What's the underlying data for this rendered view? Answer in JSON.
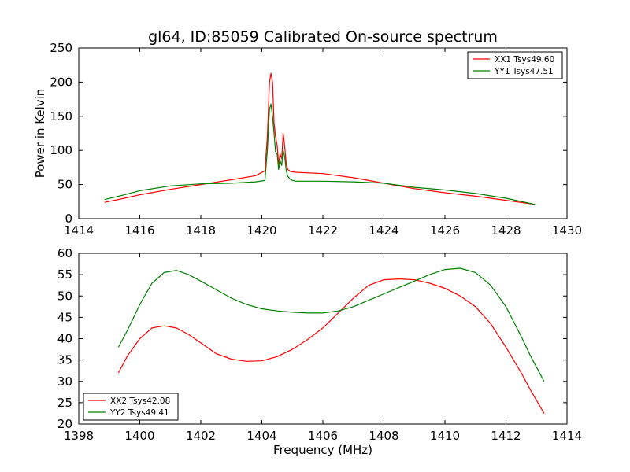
{
  "figure": {
    "title": "gl64, ID:85059 Calibrated On-source spectrum"
  },
  "chart_data": [
    {
      "type": "line",
      "title": "gl64, ID:85059 Calibrated On-source spectrum",
      "xlabel": "",
      "ylabel": "Power in Kelvin",
      "xlim": [
        1414,
        1430
      ],
      "ylim": [
        0,
        250
      ],
      "xticks": [
        1414,
        1416,
        1418,
        1420,
        1422,
        1424,
        1426,
        1428,
        1430
      ],
      "yticks": [
        0,
        50,
        100,
        150,
        200,
        250
      ],
      "legend_position": "upper-right",
      "grid": false,
      "series": [
        {
          "name": "XX1 Tsys49.60",
          "color": "#ff0000",
          "x": [
            1414.85,
            1415.5,
            1416,
            1417,
            1418,
            1419,
            1419.8,
            1420.1,
            1420.18,
            1420.25,
            1420.3,
            1420.35,
            1420.4,
            1420.45,
            1420.5,
            1420.55,
            1420.6,
            1420.65,
            1420.7,
            1420.75,
            1420.8,
            1420.85,
            1420.95,
            1421.1,
            1422,
            1423,
            1424,
            1425,
            1426,
            1427,
            1428,
            1428.95
          ],
          "y": [
            24,
            30,
            35,
            43,
            50,
            57,
            63,
            70,
            120,
            200,
            213,
            200,
            140,
            120,
            108,
            80,
            95,
            88,
            125,
            105,
            80,
            72,
            69,
            68,
            66,
            60,
            52,
            44,
            38,
            33,
            27,
            21
          ]
        },
        {
          "name": "YY1 Tsys47.51",
          "color": "#008000",
          "x": [
            1414.85,
            1415.5,
            1416,
            1417,
            1418,
            1419,
            1419.8,
            1420.1,
            1420.18,
            1420.25,
            1420.3,
            1420.35,
            1420.4,
            1420.45,
            1420.5,
            1420.55,
            1420.6,
            1420.65,
            1420.7,
            1420.75,
            1420.8,
            1420.85,
            1420.95,
            1421.1,
            1422,
            1423,
            1424,
            1425,
            1426,
            1427,
            1428,
            1428.95
          ],
          "y": [
            28,
            35,
            41,
            48,
            51,
            52,
            54,
            56,
            100,
            160,
            168,
            150,
            125,
            98,
            95,
            72,
            85,
            78,
            100,
            90,
            70,
            62,
            57,
            55,
            55,
            54,
            52,
            46,
            42,
            37,
            30,
            21
          ]
        }
      ]
    },
    {
      "type": "line",
      "title": "",
      "xlabel": "Frequency (MHz)",
      "ylabel": "",
      "xlim": [
        1398,
        1414
      ],
      "ylim": [
        20,
        60
      ],
      "xticks": [
        1398,
        1400,
        1402,
        1404,
        1406,
        1408,
        1410,
        1412,
        1414
      ],
      "yticks": [
        20,
        25,
        30,
        35,
        40,
        45,
        50,
        55,
        60
      ],
      "legend_position": "lower-left",
      "grid": false,
      "series": [
        {
          "name": "XX2 Tsys42.08",
          "color": "#ff0000",
          "x": [
            1399.3,
            1399.6,
            1400,
            1400.4,
            1400.8,
            1401.2,
            1401.6,
            1402,
            1402.5,
            1403,
            1403.5,
            1404,
            1404.5,
            1405,
            1405.5,
            1406,
            1406.5,
            1407,
            1407.5,
            1408,
            1408.5,
            1409,
            1409.5,
            1410,
            1410.5,
            1411,
            1411.5,
            1412,
            1412.5,
            1412.8,
            1413.25
          ],
          "y": [
            32,
            36,
            40,
            42.5,
            43,
            42.5,
            41,
            39,
            36.5,
            35.2,
            34.7,
            34.8,
            35.8,
            37.5,
            39.8,
            42.5,
            46,
            49.5,
            52.5,
            53.8,
            54,
            53.8,
            53,
            51.8,
            50,
            47.5,
            43.5,
            38,
            32,
            28,
            22.5
          ]
        },
        {
          "name": "YY2 Tsys49.41",
          "color": "#008000",
          "x": [
            1399.3,
            1399.6,
            1400,
            1400.4,
            1400.8,
            1401.2,
            1401.6,
            1402,
            1402.5,
            1403,
            1403.5,
            1404,
            1404.5,
            1405,
            1405.5,
            1406,
            1406.5,
            1407,
            1407.5,
            1408,
            1408.5,
            1409,
            1409.5,
            1410,
            1410.5,
            1411,
            1411.5,
            1412,
            1412.5,
            1412.8,
            1413.25
          ],
          "y": [
            38,
            42,
            48,
            53,
            55.5,
            56,
            55,
            53.5,
            51.5,
            49.5,
            48,
            47,
            46.5,
            46.2,
            46,
            46,
            46.5,
            47.5,
            49,
            50.5,
            52,
            53.5,
            55,
            56.2,
            56.5,
            55.5,
            52.5,
            47.5,
            40.5,
            36,
            30
          ]
        }
      ]
    }
  ]
}
